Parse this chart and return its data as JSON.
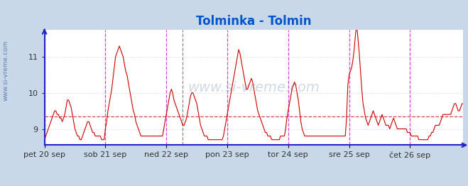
{
  "title": "Tolminka - Tolmin",
  "title_color": "#0055cc",
  "title_fontsize": 12,
  "background_color": "#c8d8e8",
  "plot_bg_color": "#ffffff",
  "line_color": "#cc0000",
  "dashed_line_color": "#dd4444",
  "dashed_line_y": 9.35,
  "ylim": [
    8.55,
    11.75
  ],
  "yticks": [
    9,
    10,
    11
  ],
  "legend_color": "#cc0000",
  "watermark": "www.si-vreme.com",
  "axis_color": "#2222cc",
  "grid_color": "#ccccdd",
  "vline_color_magenta": "#dd44dd",
  "vline_color_dark": "#888888",
  "x_tick_labels": [
    "pet 20 sep",
    "sob 21 sep",
    "ned 22 sep",
    "pon 23 sep",
    "tor 24 sep",
    "sre 25 sep",
    "čet 26 sep"
  ],
  "day_tick_positions": [
    0,
    48,
    96,
    144,
    192,
    240,
    288
  ],
  "dark_vline_pos": 109,
  "temperature_values": [
    8.7,
    8.8,
    8.9,
    9.0,
    9.1,
    9.2,
    9.3,
    9.4,
    9.5,
    9.5,
    9.4,
    9.4,
    9.3,
    9.3,
    9.2,
    9.3,
    9.4,
    9.6,
    9.8,
    9.8,
    9.7,
    9.6,
    9.4,
    9.2,
    9.0,
    8.9,
    8.8,
    8.8,
    8.7,
    8.7,
    8.8,
    8.9,
    9.0,
    9.1,
    9.2,
    9.2,
    9.1,
    9.0,
    8.9,
    8.9,
    8.8,
    8.8,
    8.8,
    8.8,
    8.8,
    8.7,
    8.7,
    8.7,
    9.0,
    9.2,
    9.5,
    9.7,
    9.9,
    10.1,
    10.4,
    10.7,
    11.0,
    11.1,
    11.2,
    11.3,
    11.2,
    11.1,
    11.0,
    10.8,
    10.6,
    10.5,
    10.3,
    10.1,
    9.9,
    9.7,
    9.5,
    9.4,
    9.2,
    9.1,
    9.0,
    8.9,
    8.8,
    8.8,
    8.8,
    8.8,
    8.8,
    8.8,
    8.8,
    8.8,
    8.8,
    8.8,
    8.8,
    8.8,
    8.8,
    8.8,
    8.8,
    8.8,
    8.8,
    8.8,
    9.0,
    9.2,
    9.4,
    9.6,
    9.8,
    10.0,
    10.1,
    10.0,
    9.8,
    9.7,
    9.6,
    9.5,
    9.4,
    9.3,
    9.2,
    9.1,
    9.1,
    9.2,
    9.3,
    9.5,
    9.7,
    9.9,
    10.0,
    10.0,
    9.9,
    9.8,
    9.7,
    9.5,
    9.3,
    9.1,
    9.0,
    8.9,
    8.8,
    8.8,
    8.8,
    8.7,
    8.7,
    8.7,
    8.7,
    8.7,
    8.7,
    8.7,
    8.7,
    8.7,
    8.7,
    8.7,
    8.7,
    8.8,
    9.0,
    9.2,
    9.4,
    9.6,
    9.8,
    10.0,
    10.2,
    10.4,
    10.6,
    10.8,
    11.0,
    11.2,
    11.1,
    10.9,
    10.7,
    10.5,
    10.3,
    10.1,
    10.1,
    10.2,
    10.3,
    10.4,
    10.3,
    10.1,
    9.9,
    9.7,
    9.5,
    9.4,
    9.3,
    9.2,
    9.1,
    9.0,
    8.9,
    8.9,
    8.8,
    8.8,
    8.8,
    8.7,
    8.7,
    8.7,
    8.7,
    8.7,
    8.7,
    8.7,
    8.8,
    8.8,
    8.8,
    8.8,
    9.0,
    9.3,
    9.5,
    9.7,
    9.9,
    10.1,
    10.2,
    10.3,
    10.2,
    10.0,
    9.8,
    9.5,
    9.2,
    9.0,
    8.9,
    8.8,
    8.8,
    8.8,
    8.8,
    8.8,
    8.8,
    8.8,
    8.8,
    8.8,
    8.8,
    8.8,
    8.8,
    8.8,
    8.8,
    8.8,
    8.8,
    8.8,
    8.8,
    8.8,
    8.8,
    8.8,
    8.8,
    8.8,
    8.8,
    8.8,
    8.8,
    8.8,
    8.8,
    8.8,
    8.8,
    8.8,
    8.8,
    8.8,
    9.3,
    10.2,
    10.5,
    10.6,
    10.7,
    10.9,
    11.2,
    11.6,
    11.9,
    11.5,
    11.1,
    10.6,
    10.1,
    9.7,
    9.5,
    9.3,
    9.2,
    9.1,
    9.2,
    9.3,
    9.4,
    9.5,
    9.4,
    9.3,
    9.2,
    9.1,
    9.2,
    9.3,
    9.4,
    9.3,
    9.2,
    9.1,
    9.1,
    9.1,
    9.0,
    9.1,
    9.2,
    9.3,
    9.2,
    9.1,
    9.0,
    9.0,
    9.0,
    9.0,
    9.0,
    9.0,
    9.0,
    9.0,
    8.9,
    8.9,
    8.9,
    8.8,
    8.8,
    8.8,
    8.8,
    8.8,
    8.8,
    8.7,
    8.7,
    8.7,
    8.7,
    8.7,
    8.7,
    8.7,
    8.7,
    8.8,
    8.8,
    8.9,
    8.9,
    9.0,
    9.1,
    9.1,
    9.1,
    9.1,
    9.2,
    9.3,
    9.4,
    9.4,
    9.4,
    9.4,
    9.4,
    9.4,
    9.4,
    9.5,
    9.6,
    9.7,
    9.7,
    9.6,
    9.5,
    9.5,
    9.6,
    9.7,
    9.7
  ]
}
